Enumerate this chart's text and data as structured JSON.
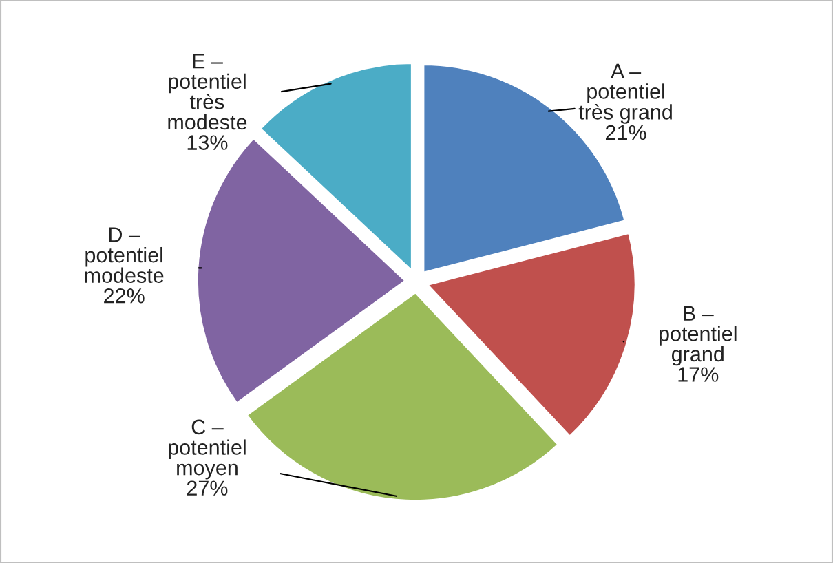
{
  "chart_data": {
    "type": "pie",
    "categories": [
      "A –\npotentiel\ntrès grand",
      "B –\npotentiel\ngrand",
      "C –\npotentiel\nmoyen",
      "D –\npotentiel\nmodeste",
      "E –\npotentiel\ntrès\nmodeste"
    ],
    "values": [
      21,
      17,
      27,
      22,
      13
    ],
    "value_labels": [
      "21%",
      "17%",
      "27%",
      "22%",
      "13%"
    ],
    "colors": [
      "#4f81bd",
      "#c0504d",
      "#9bbb59",
      "#8064a2",
      "#4bacc6"
    ],
    "legend": false
  }
}
